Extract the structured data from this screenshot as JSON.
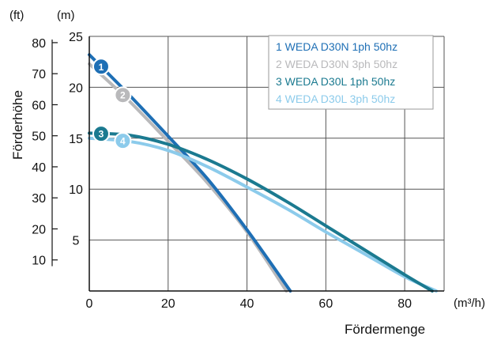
{
  "chart_data": {
    "type": "line",
    "xlabel": "Fördermenge",
    "x_unit": "(m³/h)",
    "ylabel": "Förderhöhe",
    "y_unit_left_outer": "(ft)",
    "y_unit_left_inner": "(m)",
    "xlim": [
      0,
      90
    ],
    "ylim": [
      0,
      25
    ],
    "grid": true,
    "legend_position": "top-right",
    "x_ticks": [
      "0",
      "20",
      "40",
      "60",
      "80"
    ],
    "y_ticks_m": [
      "5",
      "10",
      "15",
      "20",
      "25"
    ],
    "y_ticks_ft": [
      "10",
      "20",
      "30",
      "40",
      "50",
      "60",
      "70",
      "80"
    ],
    "series": [
      {
        "badge": "1",
        "name": "1 WEDA D30N 1ph 50hz",
        "color": "#1e6fb5",
        "x": [
          0,
          10,
          20,
          30,
          40,
          51
        ],
        "y": [
          23.2,
          19.3,
          15.2,
          11.0,
          6.0,
          0
        ]
      },
      {
        "badge": "2",
        "name": "2 WEDA D30N 3ph 50hz",
        "color": "#b9b9bb",
        "x": [
          0,
          10,
          20,
          30,
          40,
          50
        ],
        "y": [
          22.3,
          18.7,
          14.7,
          10.6,
          5.8,
          0
        ]
      },
      {
        "badge": "3",
        "name": "3 WEDA D30L 1ph 50hz",
        "color": "#1b7a90",
        "x": [
          0,
          10,
          20,
          30,
          40,
          50,
          60,
          70,
          80,
          87
        ],
        "y": [
          15.5,
          15.3,
          14.4,
          12.9,
          11.0,
          8.8,
          6.4,
          4.0,
          1.6,
          0
        ]
      },
      {
        "badge": "4",
        "name": "4 WEDA D30L 3ph 50hz",
        "color": "#8ccbeb",
        "x": [
          0,
          10,
          20,
          30,
          40,
          50,
          60,
          70,
          80,
          88
        ],
        "y": [
          15.0,
          14.7,
          13.8,
          12.2,
          10.2,
          8.1,
          5.8,
          3.6,
          1.4,
          0
        ]
      }
    ]
  }
}
